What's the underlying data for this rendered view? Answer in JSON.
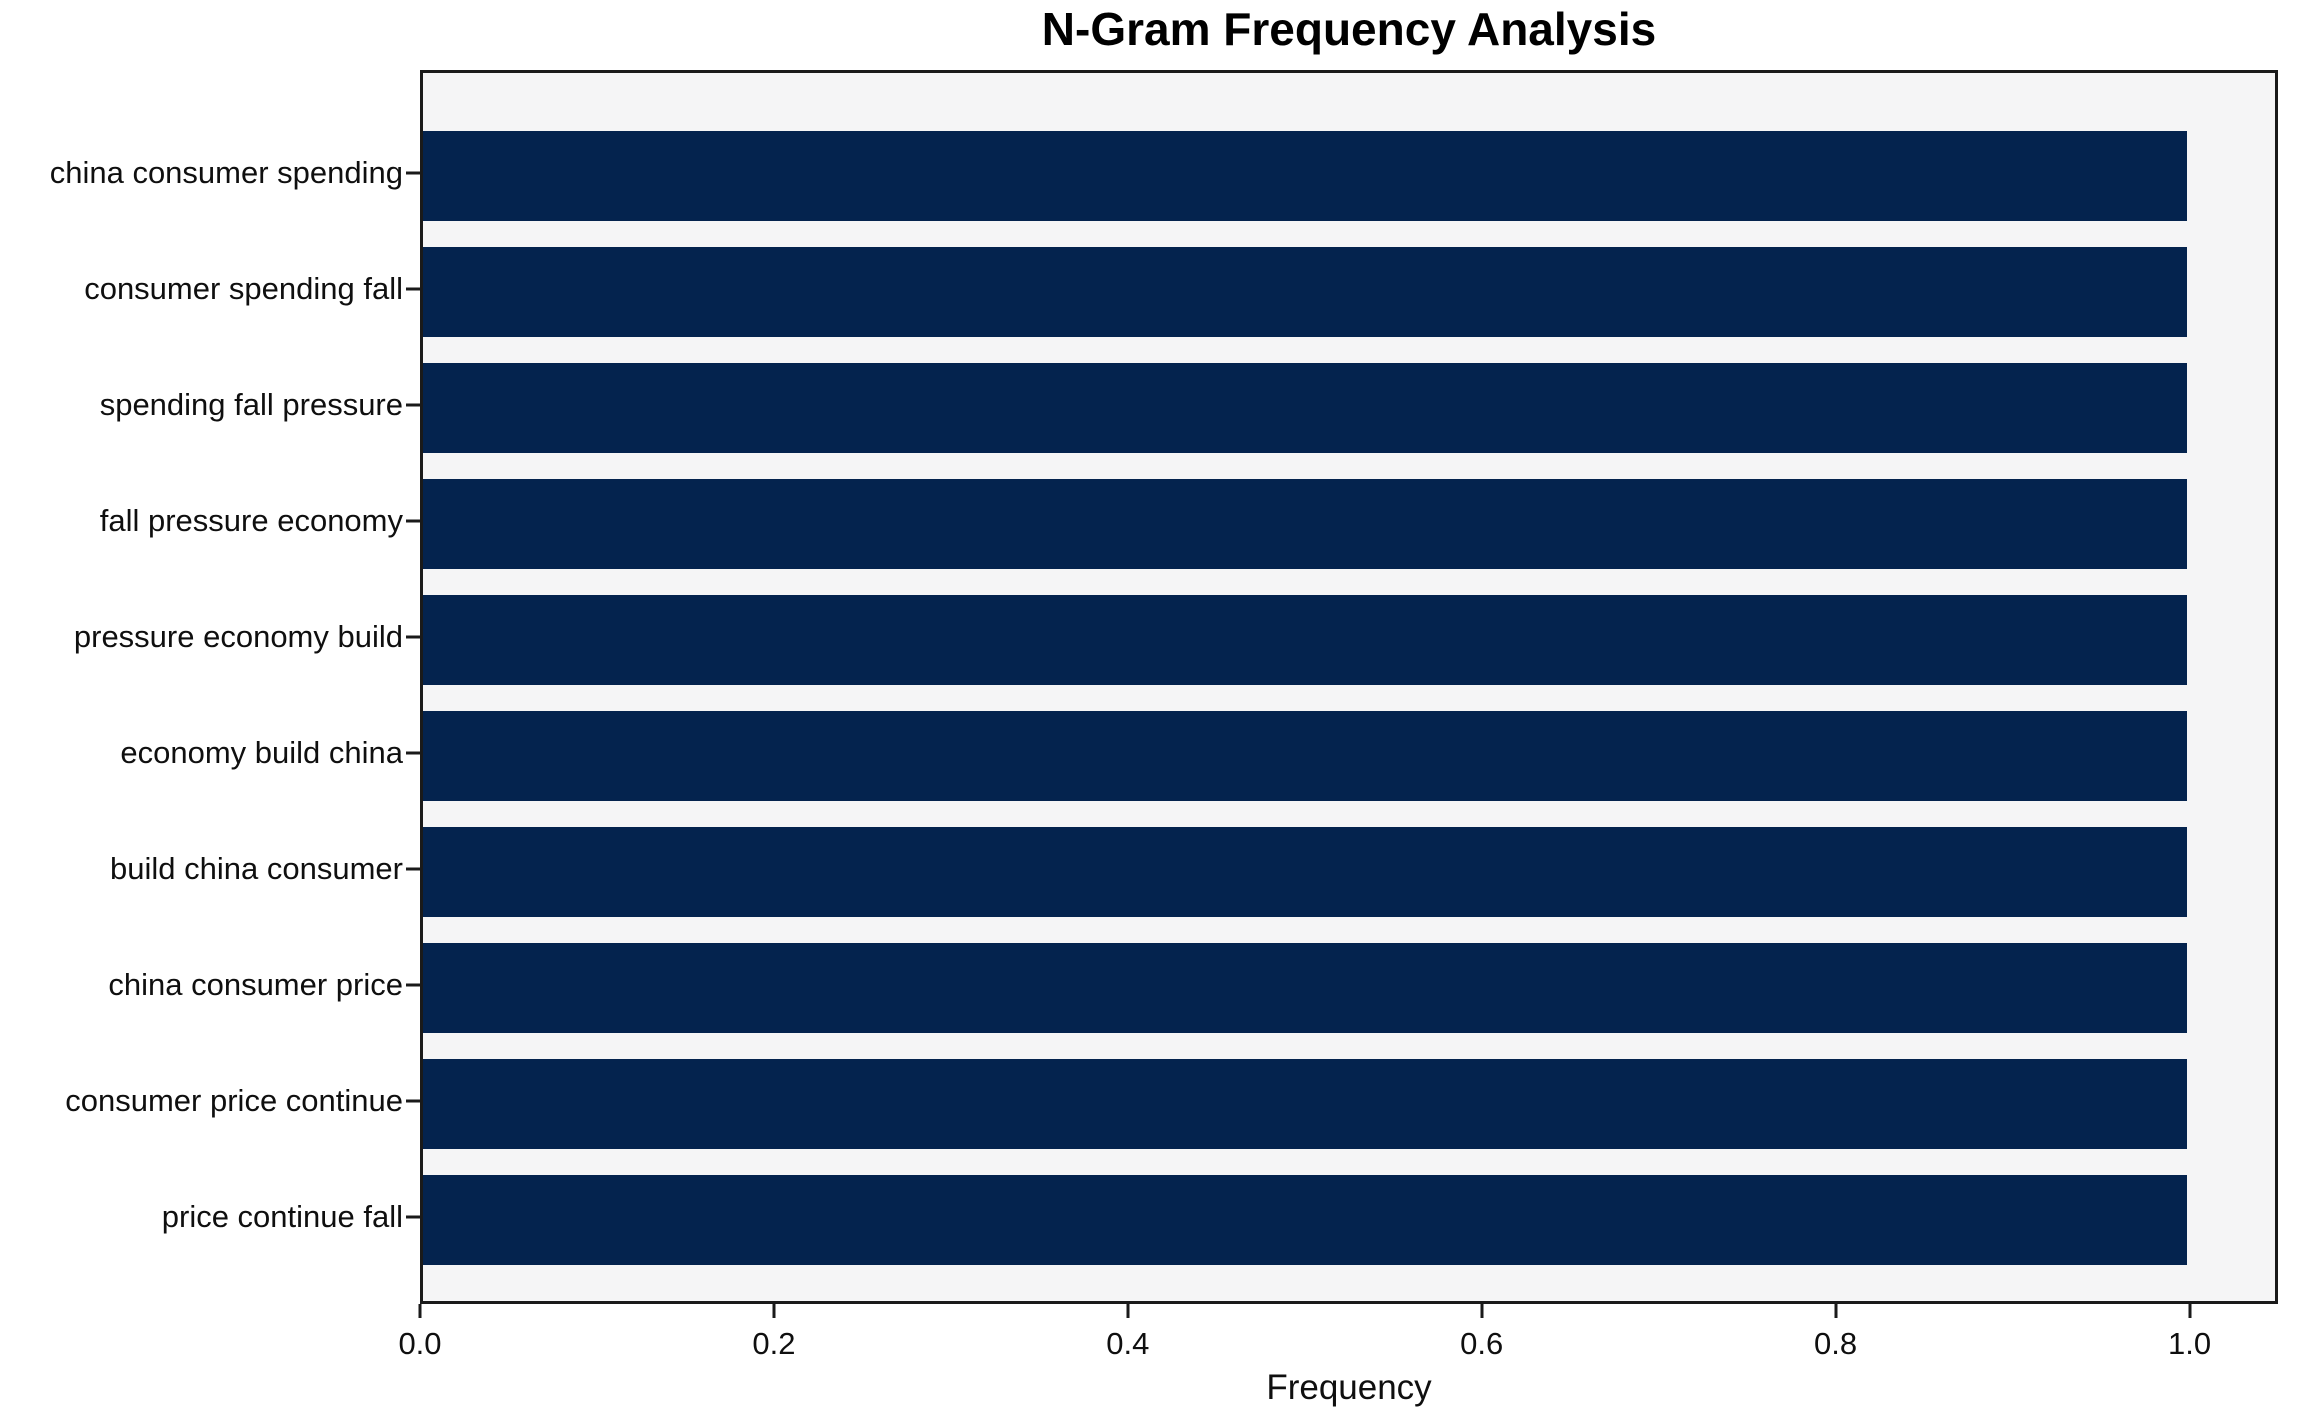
{
  "chart_data": {
    "type": "bar",
    "orientation": "horizontal",
    "title": "N-Gram Frequency Analysis",
    "xlabel": "Frequency",
    "ylabel": "",
    "categories": [
      "china consumer spending",
      "consumer spending fall",
      "spending fall pressure",
      "fall pressure economy",
      "pressure economy build",
      "economy build china",
      "build china consumer",
      "china consumer price",
      "consumer price continue",
      "price continue fall"
    ],
    "values": [
      1.0,
      1.0,
      1.0,
      1.0,
      1.0,
      1.0,
      1.0,
      1.0,
      1.0,
      1.0
    ],
    "xlim": [
      0.0,
      1.05
    ],
    "xticks": [
      {
        "value": 0.0,
        "label": "0.0"
      },
      {
        "value": 0.2,
        "label": "0.2"
      },
      {
        "value": 0.4,
        "label": "0.4"
      },
      {
        "value": 0.6,
        "label": "0.6"
      },
      {
        "value": 0.8,
        "label": "0.8"
      },
      {
        "value": 1.0,
        "label": "1.0"
      }
    ],
    "grid": false,
    "legend": null,
    "colors": {
      "bar": "#04234e",
      "plot_background": "#f5f5f6",
      "figure_background": "#ffffff",
      "spine": "#1a1a1a",
      "text": "#0f0f0f"
    }
  }
}
